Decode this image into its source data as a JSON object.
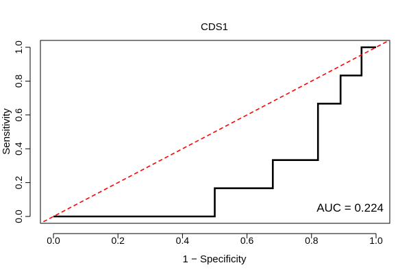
{
  "chart_data": {
    "type": "line",
    "title": "CDS1",
    "xlabel": "1 − Specificity",
    "ylabel": "Sensitivity",
    "xlim": [
      0,
      1
    ],
    "ylim": [
      0,
      1
    ],
    "x_ticks": [
      "0.0",
      "0.2",
      "0.4",
      "0.6",
      "0.8",
      "1.0"
    ],
    "y_ticks": [
      "0.0",
      "0.2",
      "0.4",
      "0.6",
      "0.8",
      "1.0"
    ],
    "grid": false,
    "series": [
      {
        "name": "ROC curve",
        "color": "#000000",
        "style": "solid",
        "x": [
          0,
          0.5,
          0.5,
          0.68,
          0.68,
          0.82,
          0.82,
          0.89,
          0.89,
          0.955,
          0.955,
          1.0
        ],
        "y": [
          0,
          0,
          0.1667,
          0.1667,
          0.3333,
          0.3333,
          0.6667,
          0.6667,
          0.8333,
          0.8333,
          1.0,
          1.0
        ]
      },
      {
        "name": "reference diagonal",
        "color": "#ff0000",
        "style": "dashed",
        "x": [
          -0.05,
          1.05
        ],
        "y": [
          -0.05,
          1.05
        ]
      }
    ],
    "annotation": "AUC = 0.224"
  }
}
